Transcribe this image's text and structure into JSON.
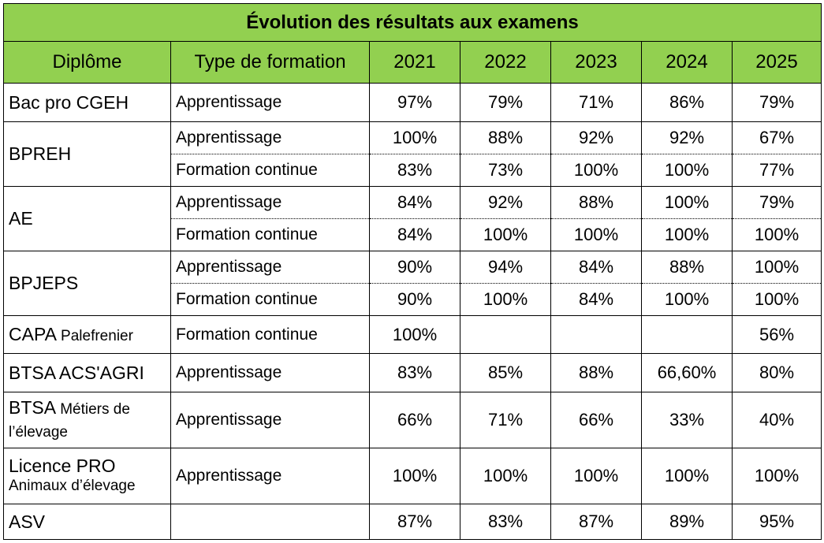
{
  "chart_data": {
    "type": "table",
    "title": "Évolution des résultats aux examens",
    "columns": [
      "Diplôme",
      "Type de formation",
      "2021",
      "2022",
      "2023",
      "2024",
      "2025"
    ],
    "rows": [
      {
        "diplome": "Bac pro CGEH",
        "diplome_sub": "",
        "type": "Apprentissage",
        "values": [
          "97%",
          "79%",
          "71%",
          "86%",
          "79%"
        ]
      },
      {
        "diplome": "BPREH",
        "diplome_sub": "",
        "type": "Apprentissage",
        "values": [
          "100%",
          "88%",
          "92%",
          "92%",
          "67%"
        ]
      },
      {
        "diplome": "",
        "diplome_sub": "",
        "type": "Formation continue",
        "values": [
          "83%",
          "73%",
          "100%",
          "100%",
          "77%"
        ]
      },
      {
        "diplome": "AE",
        "diplome_sub": "",
        "type": "Apprentissage",
        "values": [
          "84%",
          "92%",
          "88%",
          "100%",
          "79%"
        ]
      },
      {
        "diplome": "",
        "diplome_sub": "",
        "type": "Formation continue",
        "values": [
          "84%",
          "100%",
          "100%",
          "100%",
          "100%"
        ]
      },
      {
        "diplome": "BPJEPS",
        "diplome_sub": "",
        "type": "Apprentissage",
        "values": [
          "90%",
          "94%",
          "84%",
          "88%",
          "100%"
        ]
      },
      {
        "diplome": "",
        "diplome_sub": "",
        "type": "Formation continue",
        "values": [
          "90%",
          "100%",
          "84%",
          "100%",
          "100%"
        ]
      },
      {
        "diplome": "CAPA",
        "diplome_sub": "Palefrenier",
        "type": "Formation continue",
        "values": [
          "100%",
          "",
          "",
          "",
          "56%"
        ]
      },
      {
        "diplome": "BTSA ACS'AGRI",
        "diplome_sub": "",
        "type": "Apprentissage",
        "values": [
          "83%",
          "85%",
          "88%",
          "66,60%",
          "80%"
        ]
      },
      {
        "diplome": "BTSA",
        "diplome_sub": "Métiers de l’élevage",
        "type": "Apprentissage",
        "values": [
          "66%",
          "71%",
          "66%",
          "33%",
          "40%"
        ]
      },
      {
        "diplome": "Licence PRO",
        "diplome_sub": "Animaux d’élevage",
        "type": "Apprentissage",
        "values": [
          "100%",
          "100%",
          "100%",
          "100%",
          "100%"
        ]
      },
      {
        "diplome": "ASV",
        "diplome_sub": "",
        "type": "",
        "values": [
          "87%",
          "83%",
          "87%",
          "89%",
          "95%"
        ]
      }
    ]
  },
  "colors": {
    "header_bg": "#92d050",
    "border": "#000000"
  }
}
